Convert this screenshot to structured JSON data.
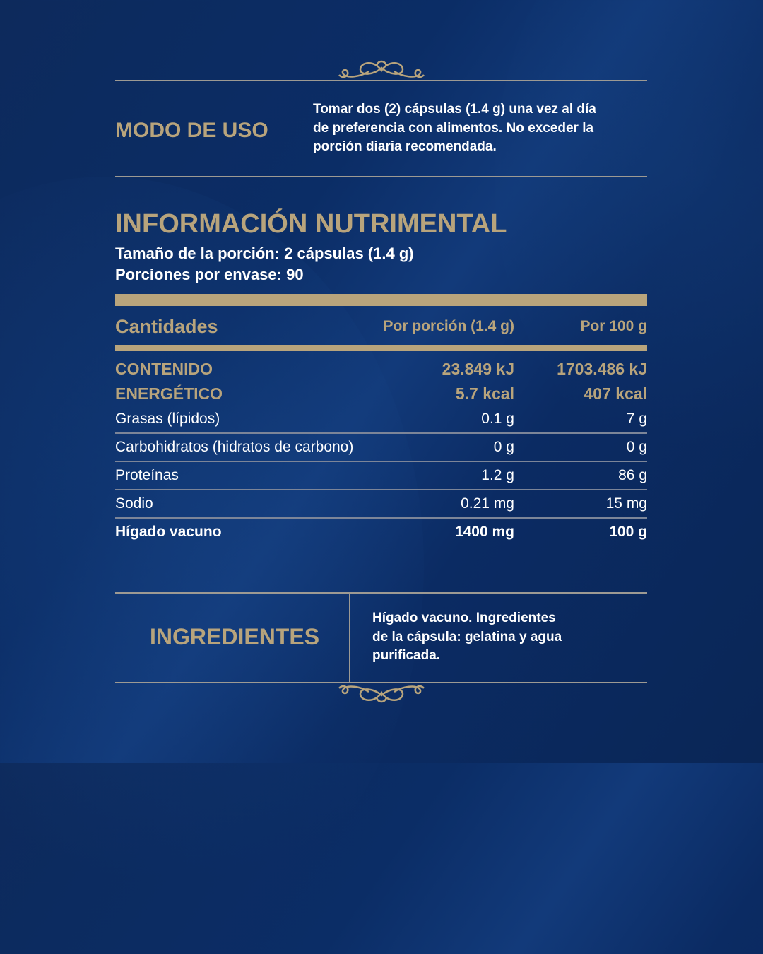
{
  "modo_de_uso": {
    "title": "MODO DE USO",
    "text_lines": [
      "Tomar dos (2) cápsulas (1.4 g) una vez al día",
      "de preferencia con alimentos. No exceder la",
      "porción diaria recomendada."
    ]
  },
  "nutricion": {
    "title": "INFORMACIÓN NUTRIMENTAL",
    "serving_size": "Tamaño de la porción: 2 cápsulas (1.4 g)",
    "servings": "Porciones por envase: 90",
    "headers": [
      "Cantidades",
      "Por porción (1.4 g)",
      "Por 100 g"
    ],
    "energy": {
      "label_lines": [
        "CONTENIDO",
        "ENERGÉTICO"
      ],
      "kj": [
        "23.849 kJ",
        "1703.486 kJ"
      ],
      "kcal": [
        "5.7 kcal",
        "407 kcal"
      ]
    },
    "rows": [
      {
        "label": "Grasas (lípidos)",
        "per_serving": "0.1 g",
        "per_100g": "7 g"
      },
      {
        "label": "Carbohidratos (hidratos de carbono)",
        "per_serving": "0 g",
        "per_100g": "0 g"
      },
      {
        "label": "Proteínas",
        "per_serving": "1.2 g",
        "per_100g": "86 g"
      },
      {
        "label": "Sodio",
        "per_serving": "0.21 mg",
        "per_100g": "15 mg"
      },
      {
        "label": "Hígado vacuno",
        "per_serving": "1400 mg",
        "per_100g": "100 g"
      }
    ]
  },
  "ingredientes": {
    "title": "INGREDIENTES",
    "text_lines": [
      "Hígado vacuno. Ingredientes",
      "de la cápsula: gelatina y agua",
      "purificada."
    ]
  },
  "colors": {
    "background": "#0b2b63",
    "accent_gold": "#b8a47c"
  },
  "icons": [
    "ornament-flourish-icon"
  ]
}
